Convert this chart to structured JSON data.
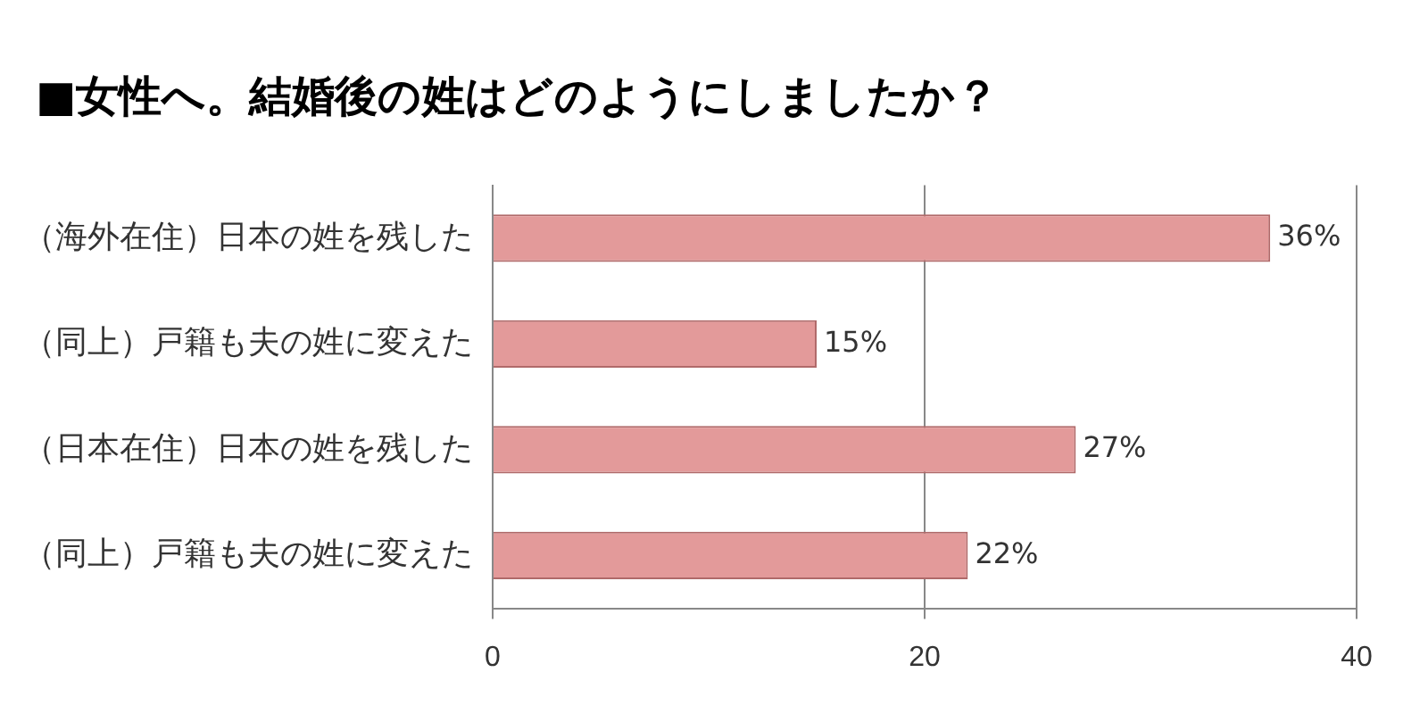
{
  "chart_data": {
    "type": "bar",
    "orientation": "horizontal",
    "title": "■女性へ。結婚後の姓はどのようにしましたか？",
    "categories": [
      "（海外在住）日本の姓を残した",
      "（同上）戸籍も夫の姓に変えた",
      "（日本在住）日本の姓を残した",
      "（同上）戸籍も夫の姓に変えた"
    ],
    "values": [
      36,
      15,
      27,
      22
    ],
    "value_labels": [
      "36%",
      "15%",
      "27%",
      "22%"
    ],
    "color": "#e39a9a",
    "xlim": [
      0,
      40
    ],
    "xticks": [
      0,
      20,
      40
    ],
    "grid": "x",
    "legend": false
  }
}
